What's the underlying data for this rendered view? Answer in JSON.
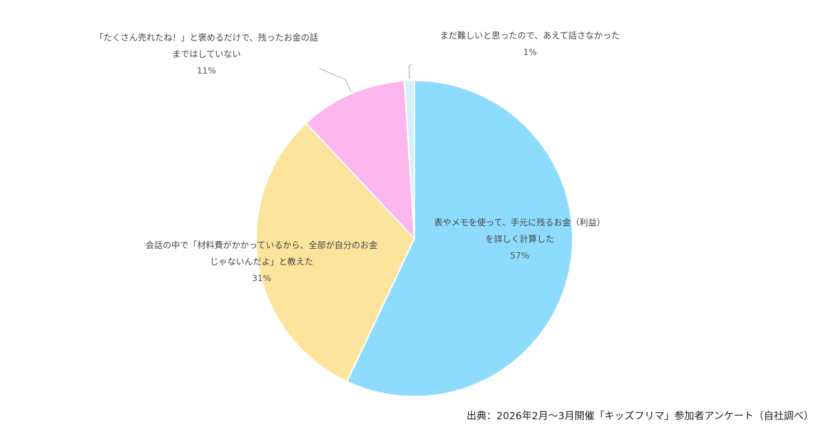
{
  "chart_data": {
    "type": "pie",
    "slices": [
      {
        "label_lines": [
          "表やメモを使って、手元に残るお金（利益）",
          "を詳しく計算した"
        ],
        "value": 57,
        "value_label": "57%",
        "color": "#8ddcfd"
      },
      {
        "label_lines": [
          "会話の中で「材料費がかかっているから、全部が自分のお金",
          "じゃないんだよ」と教えた"
        ],
        "value": 31,
        "value_label": "31%",
        "color": "#fde49d"
      },
      {
        "label_lines": [
          "「たくさん売れたね！」と褒めるだけで、残ったお金の話",
          "まではしていない"
        ],
        "value": 11,
        "value_label": "11%",
        "color": "#fdb6ee"
      },
      {
        "label_lines": [
          "まだ難しいと思ったので、あえて話さなかった"
        ],
        "value": 1,
        "value_label": "1%",
        "color": "#d4eff7"
      }
    ],
    "start_angle_deg": 0,
    "direction": "clockwise"
  },
  "source": "出典：2026年2月〜3月開催「キッズフリマ」参加者アンケート（自社調べ）",
  "colors": {
    "leader_line": "#aaaaaa",
    "slice_border": "#ffffff",
    "text": "#444444"
  }
}
